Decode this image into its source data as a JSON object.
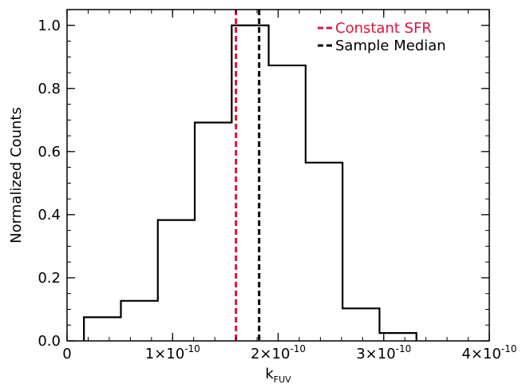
{
  "chart_data": {
    "type": "histogram",
    "xlabel": "k",
    "xlabel_sub": "FUV",
    "ylabel": "Normalized Counts",
    "xlim": [
      0,
      4e-10
    ],
    "ylim": [
      0,
      1.05
    ],
    "x_ticks": [
      {
        "value": 0,
        "mantissa": "0",
        "exponent": ""
      },
      {
        "value": 1e-10,
        "mantissa": "1×10",
        "exponent": "-10"
      },
      {
        "value": 2e-10,
        "mantissa": "2×10",
        "exponent": "-10"
      },
      {
        "value": 3e-10,
        "mantissa": "3×10",
        "exponent": "-10"
      },
      {
        "value": 4e-10,
        "mantissa": "4×10",
        "exponent": "-10"
      }
    ],
    "y_ticks": [
      {
        "value": 0.0,
        "label": "0.0"
      },
      {
        "value": 0.2,
        "label": "0.2"
      },
      {
        "value": 0.4,
        "label": "0.4"
      },
      {
        "value": 0.6,
        "label": "0.6"
      },
      {
        "value": 0.8,
        "label": "0.8"
      },
      {
        "value": 1.0,
        "label": "1.0"
      }
    ],
    "bin_edges": [
      1.6e-11,
      5.1e-11,
      8.6e-11,
      1.21e-10,
      1.56e-10,
      1.91e-10,
      2.26e-10,
      2.61e-10,
      2.96e-10,
      3.31e-10
    ],
    "counts": [
      0.075,
      0.127,
      0.383,
      0.692,
      1.0,
      0.873,
      0.565,
      0.103,
      0.025
    ],
    "lines": [
      {
        "name": "Constant SFR",
        "x": 1.6e-10,
        "color": "#dc143c",
        "style": "dashed"
      },
      {
        "name": "Sample Median",
        "x": 1.82e-10,
        "color": "#000000",
        "style": "dashed"
      }
    ],
    "legend_position": "top-right"
  }
}
